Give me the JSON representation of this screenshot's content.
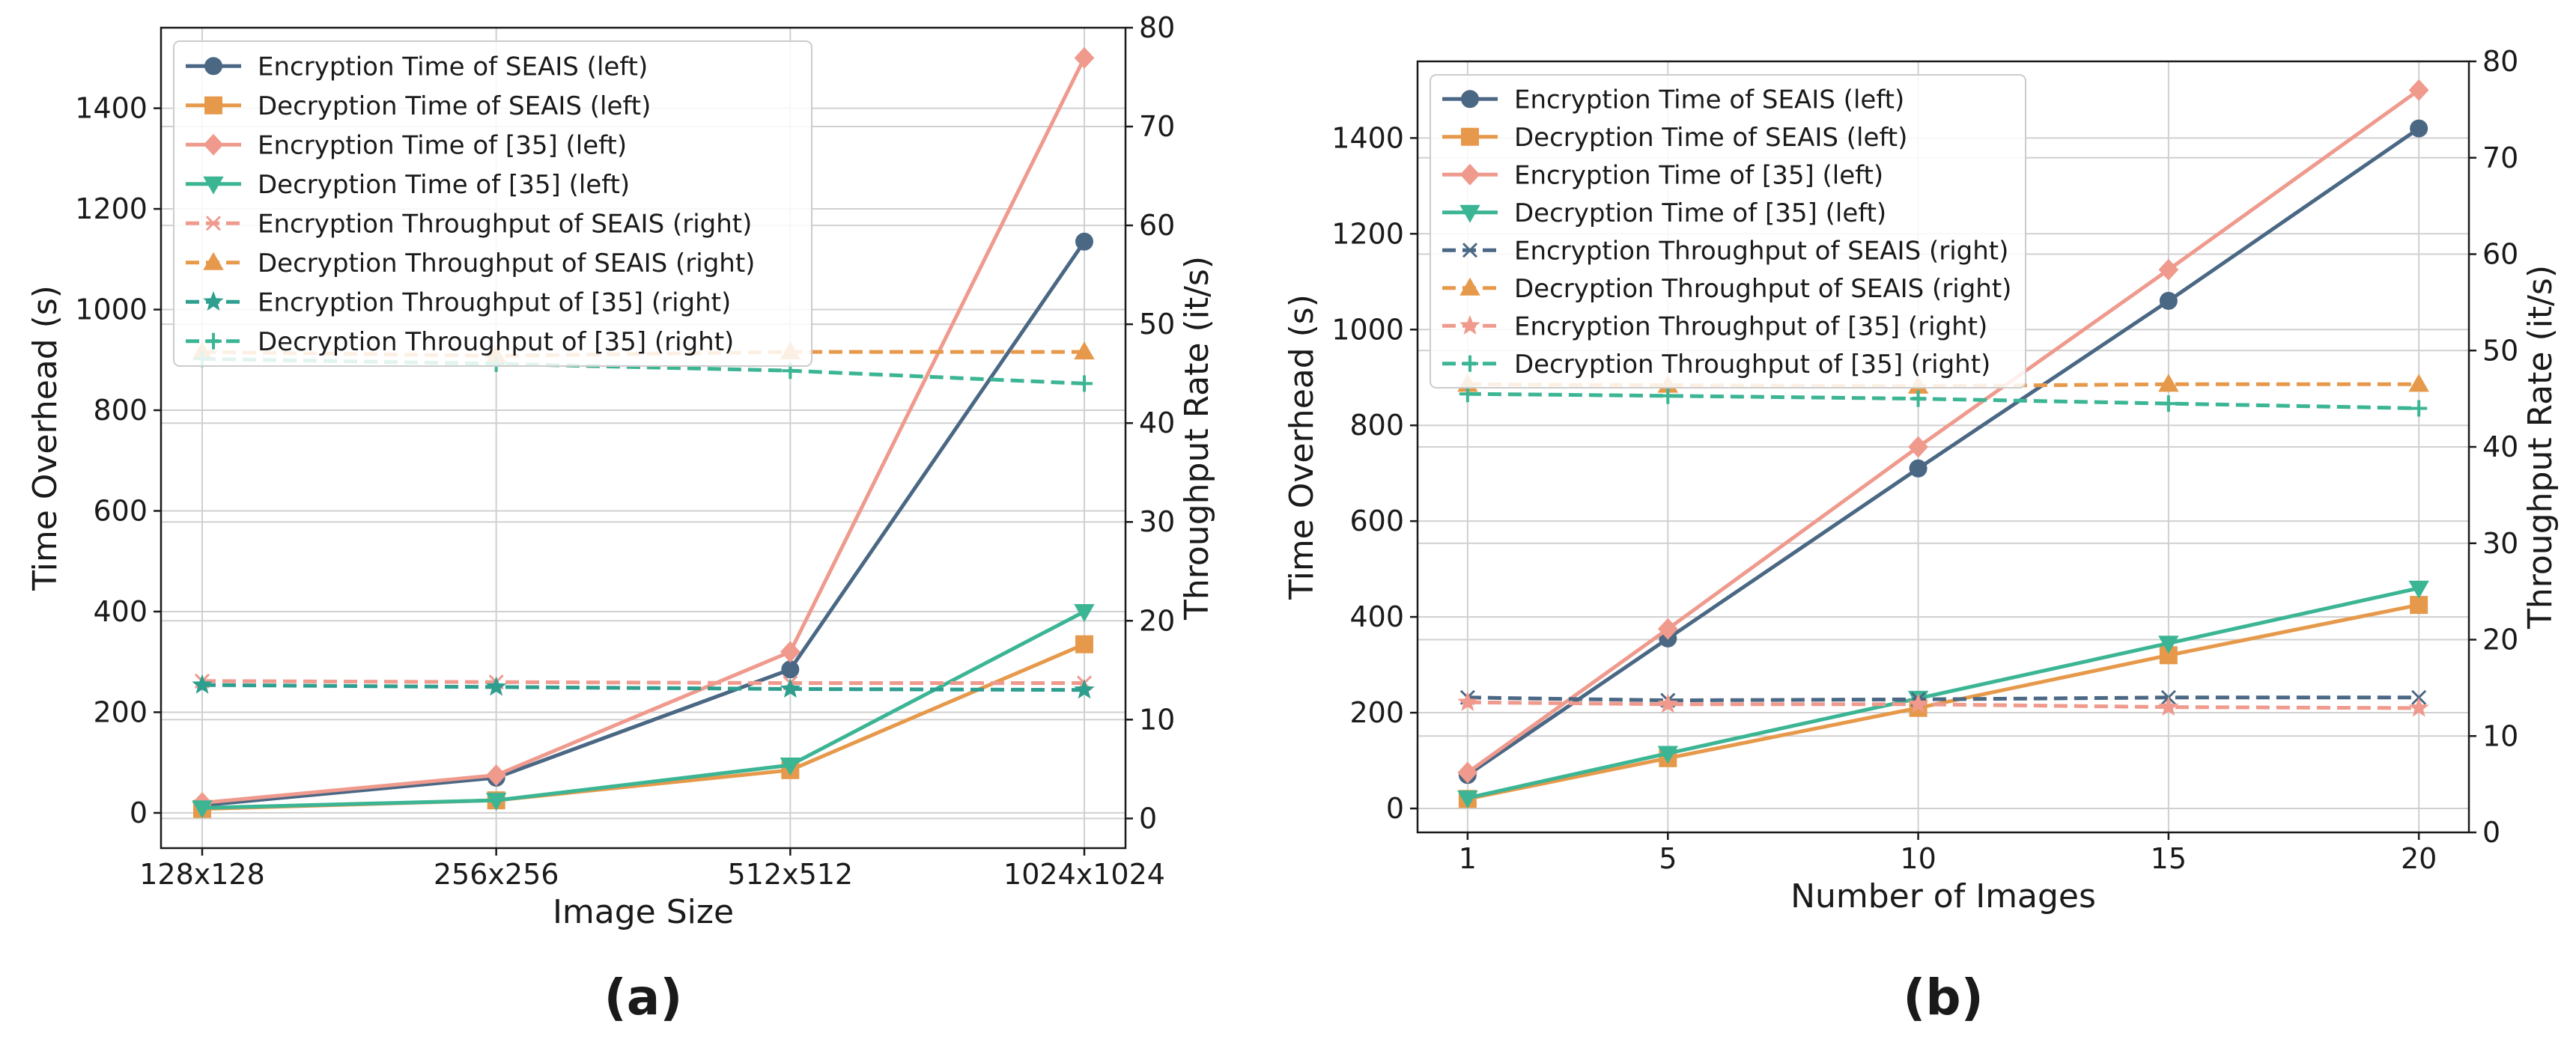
{
  "chart_data": [
    {
      "type": "line",
      "panel_label": "(a)",
      "xlabel": "Image Size",
      "ylabel_left": "Time Overhead (s)",
      "ylabel_right": "Throughput Rate (it/s)",
      "categories": [
        "128x128",
        "256x256",
        "512x512",
        "1024x1024"
      ],
      "ylim_left": [
        -70,
        1560
      ],
      "ylim_right": [
        -3,
        80
      ],
      "yticks_left": [
        0,
        200,
        400,
        600,
        800,
        1000,
        1200,
        1400
      ],
      "yticks_right": [
        0,
        10,
        20,
        30,
        40,
        50,
        60,
        70,
        80
      ],
      "grid": true,
      "legend_position": "upper-left",
      "series": [
        {
          "name": "Encryption Time of SEAIS (left)",
          "axis": "left",
          "style": "solid",
          "marker": "circle",
          "color": "#4a6784",
          "values": [
            15,
            70,
            285,
            1135
          ]
        },
        {
          "name": "Decryption Time of SEAIS (left)",
          "axis": "left",
          "style": "solid",
          "marker": "square",
          "color": "#e6994a",
          "values": [
            8,
            25,
            85,
            335
          ]
        },
        {
          "name": "Encryption Time of [35] (left)",
          "axis": "left",
          "style": "solid",
          "marker": "diamond",
          "color": "#ef9a8d",
          "values": [
            20,
            75,
            320,
            1500
          ]
        },
        {
          "name": "Decryption Time of [35] (left)",
          "axis": "left",
          "style": "solid",
          "marker": "triangle-down",
          "color": "#3bb594",
          "values": [
            10,
            25,
            95,
            400
          ]
        },
        {
          "name": "Encryption Throughput of SEAIS (right)",
          "axis": "right",
          "style": "dashed",
          "marker": "x",
          "color": "#ef9a8d",
          "values": [
            13.9,
            13.8,
            13.7,
            13.7
          ]
        },
        {
          "name": "Decryption Throughput of SEAIS (right)",
          "axis": "right",
          "style": "dashed",
          "marker": "triangle-up",
          "color": "#e6994a",
          "values": [
            47.2,
            46.8,
            47.2,
            47.2
          ]
        },
        {
          "name": "Encryption Throughput of [35] (right)",
          "axis": "right",
          "style": "dashed",
          "marker": "star",
          "color": "#2e9e8e",
          "values": [
            13.5,
            13.3,
            13.1,
            13.0
          ]
        },
        {
          "name": "Decryption Throughput of [35] (right)",
          "axis": "right",
          "style": "dashed",
          "marker": "plus",
          "color": "#3bb594",
          "values": [
            46.5,
            46.0,
            45.3,
            44.0
          ]
        }
      ]
    },
    {
      "type": "line",
      "panel_label": "(b)",
      "xlabel": "Number of Images",
      "ylabel_left": "Time Overhead (s)",
      "ylabel_right": "Throughput Rate (it/s)",
      "x": [
        1,
        5,
        10,
        15,
        20
      ],
      "xlim": [
        0,
        21
      ],
      "ylim_left": [
        -50,
        1560
      ],
      "ylim_right": [
        0,
        80
      ],
      "yticks_left": [
        0,
        200,
        400,
        600,
        800,
        1000,
        1200,
        1400
      ],
      "yticks_right": [
        0,
        10,
        20,
        30,
        40,
        50,
        60,
        70,
        80
      ],
      "grid": true,
      "legend_position": "upper-left",
      "series": [
        {
          "name": "Encryption Time of SEAIS (left)",
          "axis": "left",
          "style": "solid",
          "marker": "circle",
          "color": "#4a6784",
          "values": [
            70,
            355,
            710,
            1060,
            1420
          ]
        },
        {
          "name": "Decryption Time of SEAIS (left)",
          "axis": "left",
          "style": "solid",
          "marker": "square",
          "color": "#e6994a",
          "values": [
            20,
            105,
            210,
            320,
            425
          ]
        },
        {
          "name": "Encryption Time of [35] (left)",
          "axis": "left",
          "style": "solid",
          "marker": "diamond",
          "color": "#ef9a8d",
          "values": [
            75,
            375,
            755,
            1125,
            1500
          ]
        },
        {
          "name": "Decryption Time of [35] (left)",
          "axis": "left",
          "style": "solid",
          "marker": "triangle-down",
          "color": "#3bb594",
          "values": [
            22,
            115,
            230,
            345,
            460
          ]
        },
        {
          "name": "Encryption Throughput of SEAIS (right)",
          "axis": "right",
          "style": "dashed",
          "marker": "x",
          "color": "#4a6784",
          "values": [
            14.0,
            13.7,
            13.8,
            14.0,
            14.0
          ]
        },
        {
          "name": "Decryption Throughput of SEAIS (right)",
          "axis": "right",
          "style": "dashed",
          "marker": "triangle-up",
          "color": "#e6994a",
          "values": [
            46.5,
            46.4,
            46.3,
            46.5,
            46.5
          ]
        },
        {
          "name": "Encryption Throughput of [35] (right)",
          "axis": "right",
          "style": "dashed",
          "marker": "star",
          "color": "#ef9a8d",
          "values": [
            13.5,
            13.3,
            13.3,
            13.0,
            12.9
          ]
        },
        {
          "name": "Decryption Throughput of [35] (right)",
          "axis": "right",
          "style": "dashed",
          "marker": "plus",
          "color": "#3bb594",
          "values": [
            45.5,
            45.3,
            45.0,
            44.5,
            44.0
          ]
        }
      ]
    }
  ]
}
